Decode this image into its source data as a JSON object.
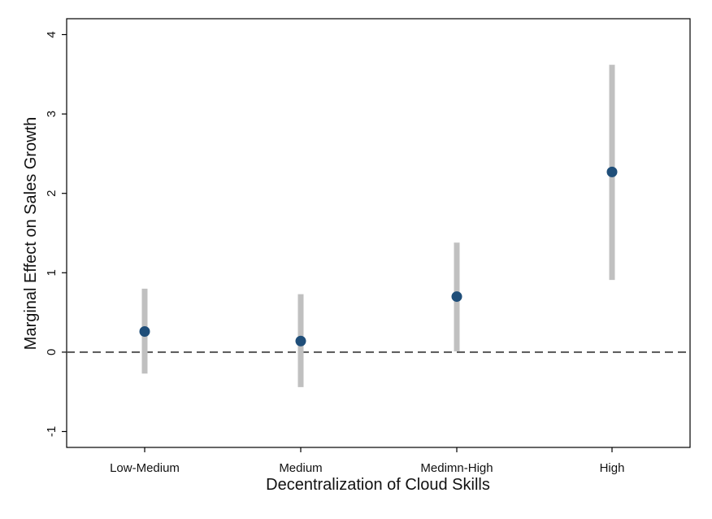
{
  "chart_data": {
    "type": "scatter",
    "categories": [
      "Low-Medium",
      "Medium",
      "Medimn-High",
      "High"
    ],
    "series": [
      {
        "values": [
          0.26,
          0.14,
          0.7,
          2.27
        ],
        "ci_low": [
          -0.27,
          -0.44,
          0.01,
          0.91
        ],
        "ci_high": [
          0.8,
          0.73,
          1.38,
          3.62
        ]
      }
    ],
    "xlabel": "Decentralization of Cloud Skills",
    "ylabel": "Marginal Effect on Sales Growth",
    "ylim": [
      -1.2,
      4.2
    ],
    "yticks": [
      -1,
      0,
      1,
      2,
      3,
      4
    ],
    "reference_line": 0,
    "grid": false,
    "colors": {
      "point": "#1f4e79",
      "ci": "#c0c0c0",
      "reference": "#555555",
      "axis": "#000000"
    }
  }
}
